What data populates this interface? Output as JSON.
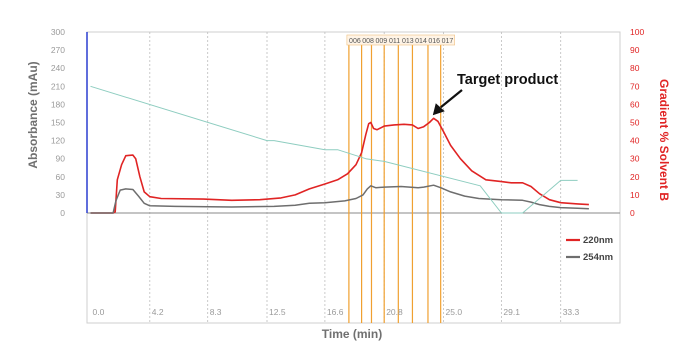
{
  "chart_data": {
    "type": "line",
    "title": "",
    "xlabel": "Time (min)",
    "ylabel_left": "Absorbance (mAu)",
    "ylabel_right": "Gradient % Solvent B",
    "x_ticks": [
      "0.0",
      "4.2",
      "8.3",
      "12.5",
      "16.6",
      "20.8",
      "25.0",
      "29.1",
      "33.3"
    ],
    "x_tick_values": [
      0.0,
      4.2,
      8.3,
      12.5,
      16.6,
      20.8,
      25.0,
      29.1,
      33.3
    ],
    "xlim": [
      0,
      37.5
    ],
    "y_left_ticks": [
      "300",
      "270",
      "240",
      "210",
      "180",
      "150",
      "120",
      "90",
      "60",
      "30",
      "0"
    ],
    "ylim_left": [
      -210,
      300
    ],
    "y_right_ticks": [
      "100",
      "90",
      "80",
      "70",
      "60",
      "50",
      "40",
      "30",
      "20",
      "10",
      "0"
    ],
    "ylim_right": [
      -70,
      100
    ],
    "grid": "vertical dashed",
    "legend_position": "bottom-right",
    "colors": {
      "220nm": "#e02424",
      "254nm": "#6e6e6e",
      "gradient": "#8ecdc0",
      "fraction": "#f0a030",
      "left_axis": "#2c3fd0",
      "annotation": "#111111"
    },
    "series": [
      {
        "name": "220nm",
        "axis": "left",
        "points": [
          [
            0,
            0
          ],
          [
            1.6,
            0
          ],
          [
            1.75,
            2
          ],
          [
            1.9,
            55
          ],
          [
            2.2,
            80
          ],
          [
            2.5,
            95
          ],
          [
            3.0,
            96
          ],
          [
            3.2,
            90
          ],
          [
            3.5,
            60
          ],
          [
            3.8,
            35
          ],
          [
            4.2,
            27
          ],
          [
            5.0,
            24
          ],
          [
            8.0,
            23
          ],
          [
            10.0,
            21
          ],
          [
            12.0,
            22
          ],
          [
            13.5,
            25
          ],
          [
            14.5,
            30
          ],
          [
            15.5,
            40
          ],
          [
            16.6,
            48
          ],
          [
            17.5,
            55
          ],
          [
            18.2,
            65
          ],
          [
            18.8,
            80
          ],
          [
            19.2,
            100
          ],
          [
            19.5,
            130
          ],
          [
            19.7,
            148
          ],
          [
            19.85,
            150
          ],
          [
            20.05,
            140
          ],
          [
            20.3,
            138
          ],
          [
            20.8,
            144
          ],
          [
            21.5,
            146
          ],
          [
            22.2,
            147
          ],
          [
            22.8,
            146
          ],
          [
            23.2,
            140
          ],
          [
            23.6,
            143
          ],
          [
            24.0,
            150
          ],
          [
            24.3,
            157
          ],
          [
            24.6,
            152
          ],
          [
            25.0,
            135
          ],
          [
            25.5,
            112
          ],
          [
            26.2,
            90
          ],
          [
            27.0,
            70
          ],
          [
            28.0,
            55
          ],
          [
            29.1,
            52
          ],
          [
            29.8,
            50
          ],
          [
            30.6,
            50
          ],
          [
            31.2,
            44
          ],
          [
            31.8,
            32
          ],
          [
            32.5,
            22
          ],
          [
            33.3,
            17
          ],
          [
            34.5,
            15
          ],
          [
            35.3,
            14
          ]
        ]
      },
      {
        "name": "254nm",
        "axis": "left",
        "points": [
          [
            0,
            0
          ],
          [
            1.6,
            0
          ],
          [
            1.8,
            20
          ],
          [
            2.1,
            38
          ],
          [
            2.5,
            40
          ],
          [
            3.0,
            39
          ],
          [
            3.4,
            28
          ],
          [
            3.8,
            16
          ],
          [
            4.2,
            12
          ],
          [
            6.0,
            11
          ],
          [
            10.0,
            10
          ],
          [
            13.0,
            11
          ],
          [
            14.5,
            13
          ],
          [
            15.5,
            16
          ],
          [
            16.6,
            17
          ],
          [
            18.0,
            20
          ],
          [
            18.8,
            24
          ],
          [
            19.3,
            30
          ],
          [
            19.6,
            40
          ],
          [
            19.85,
            45
          ],
          [
            20.2,
            42
          ],
          [
            20.8,
            43
          ],
          [
            22.0,
            44
          ],
          [
            23.2,
            42
          ],
          [
            23.6,
            43
          ],
          [
            24.3,
            46
          ],
          [
            24.8,
            42
          ],
          [
            25.5,
            35
          ],
          [
            26.5,
            28
          ],
          [
            27.5,
            24
          ],
          [
            29.1,
            22
          ],
          [
            30.6,
            21
          ],
          [
            31.2,
            18
          ],
          [
            31.8,
            14
          ],
          [
            32.5,
            11
          ],
          [
            33.3,
            9
          ],
          [
            34.5,
            8
          ],
          [
            35.3,
            7
          ]
        ]
      },
      {
        "name": "Gradient % Solvent B",
        "axis": "right",
        "points": [
          [
            0,
            70
          ],
          [
            12.5,
            40
          ],
          [
            13.0,
            40
          ],
          [
            16.6,
            35
          ],
          [
            17.5,
            35
          ],
          [
            19.5,
            30
          ],
          [
            20.8,
            28.5
          ],
          [
            27.6,
            15
          ],
          [
            29.1,
            0
          ],
          [
            30.6,
            0
          ],
          [
            33.3,
            18
          ],
          [
            34.5,
            18
          ]
        ]
      }
    ],
    "fractions": [
      {
        "label": "006",
        "x": 18.3
      },
      {
        "label": "008",
        "x": 19.2
      },
      {
        "label": "009",
        "x": 19.9
      },
      {
        "label": "011",
        "x": 20.8
      },
      {
        "label": "013",
        "x": 21.8
      },
      {
        "label": "014",
        "x": 22.8
      },
      {
        "label": "016",
        "x": 23.9
      },
      {
        "label": "017",
        "x": 24.8
      }
    ],
    "annotations": [
      {
        "text": "Target product",
        "x": 24.1,
        "y": 157
      }
    ]
  }
}
